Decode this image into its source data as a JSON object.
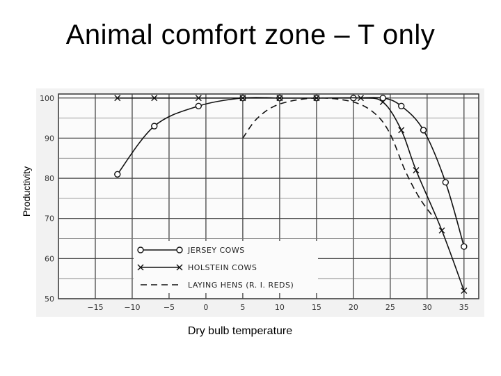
{
  "slide": {
    "title": "Animal comfort zone – T only"
  },
  "chart_data": {
    "type": "line",
    "ylabel": "Productivity",
    "xlabel": "Dry bulb temperature",
    "xlim": [
      -20,
      37
    ],
    "ylim": [
      50,
      101
    ],
    "x_ticks": [
      -15,
      -10,
      -5,
      0,
      5,
      10,
      15,
      20,
      25,
      30,
      35
    ],
    "y_ticks": [
      50,
      60,
      70,
      80,
      90,
      100
    ],
    "grid": true,
    "legend_placement": "bottom-center",
    "series": [
      {
        "name": "JERSEY COWS",
        "marker": "circle",
        "style": "solid",
        "points": [
          [
            -12,
            81
          ],
          [
            -7,
            93
          ],
          [
            -1,
            98
          ],
          [
            5,
            100
          ],
          [
            10,
            100
          ],
          [
            15,
            100
          ],
          [
            20,
            100
          ],
          [
            24,
            100
          ],
          [
            26.5,
            98
          ],
          [
            29.5,
            92
          ],
          [
            32.5,
            79
          ],
          [
            35,
            63
          ]
        ]
      },
      {
        "name": "HOLSTEIN COWS",
        "marker": "x",
        "style": "solid",
        "points": [
          [
            -12,
            100
          ],
          [
            -7,
            100
          ],
          [
            -1,
            100
          ],
          [
            5,
            100
          ],
          [
            10,
            100
          ],
          [
            15,
            100
          ],
          [
            21,
            100
          ],
          [
            24,
            99
          ],
          [
            26.5,
            92
          ],
          [
            28.5,
            82
          ],
          [
            32,
            67
          ],
          [
            35,
            52
          ]
        ]
      },
      {
        "name": "LAYING HENS (R. I. REDS)",
        "marker": "none",
        "style": "dashed",
        "points": [
          [
            5,
            90
          ],
          [
            7,
            95
          ],
          [
            10,
            98.5
          ],
          [
            15,
            100
          ],
          [
            20,
            99
          ],
          [
            23,
            96
          ],
          [
            25,
            91
          ],
          [
            27,
            82
          ],
          [
            29,
            75
          ],
          [
            31,
            70
          ]
        ]
      }
    ]
  }
}
